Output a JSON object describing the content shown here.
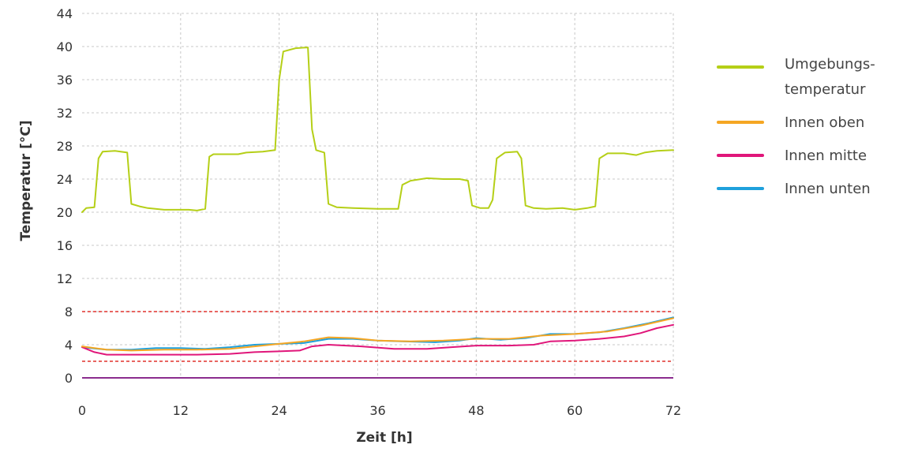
{
  "chart_data": {
    "type": "line",
    "title": "",
    "xlabel": "Zeit [h]",
    "ylabel": "Temperatur [°C]",
    "xlim": [
      0,
      72
    ],
    "ylim": [
      0,
      44
    ],
    "xticks": [
      0,
      12,
      24,
      36,
      48,
      60,
      72
    ],
    "yticks": [
      0,
      4,
      8,
      12,
      16,
      20,
      24,
      28,
      32,
      36,
      40,
      44
    ],
    "grid": "dashed",
    "legend_position": "right",
    "reference_lines": [
      {
        "y": 8,
        "color": "#e0322d",
        "style": "dashed"
      },
      {
        "y": 2,
        "color": "#e0322d",
        "style": "dashed"
      },
      {
        "y": 0,
        "color": "#8b2d8e",
        "style": "solid"
      }
    ],
    "series": [
      {
        "name": "Umgebungs-temperatur",
        "legend_lines": [
          "Umgebungs-",
          "temperatur"
        ],
        "color": "#b5cf17",
        "points": [
          [
            0,
            20
          ],
          [
            0.5,
            20.5
          ],
          [
            1.5,
            20.6
          ],
          [
            2,
            26.5
          ],
          [
            2.5,
            27.3
          ],
          [
            4,
            27.4
          ],
          [
            5.5,
            27.2
          ],
          [
            6,
            21
          ],
          [
            7,
            20.7
          ],
          [
            8,
            20.5
          ],
          [
            10,
            20.3
          ],
          [
            13,
            20.3
          ],
          [
            14,
            20.2
          ],
          [
            15,
            20.4
          ],
          [
            15.5,
            26.7
          ],
          [
            16,
            27
          ],
          [
            19,
            27
          ],
          [
            20,
            27.2
          ],
          [
            22,
            27.3
          ],
          [
            23.5,
            27.5
          ],
          [
            24,
            36
          ],
          [
            24.5,
            39.4
          ],
          [
            26,
            39.8
          ],
          [
            27.5,
            39.9
          ],
          [
            28,
            30
          ],
          [
            28.5,
            27.5
          ],
          [
            29.5,
            27.2
          ],
          [
            30,
            21
          ],
          [
            31,
            20.6
          ],
          [
            33,
            20.5
          ],
          [
            36,
            20.4
          ],
          [
            38.5,
            20.4
          ],
          [
            39,
            23.3
          ],
          [
            40,
            23.8
          ],
          [
            42,
            24.1
          ],
          [
            44,
            24
          ],
          [
            46,
            24
          ],
          [
            47,
            23.8
          ],
          [
            47.5,
            20.8
          ],
          [
            48.5,
            20.5
          ],
          [
            49.5,
            20.5
          ],
          [
            50,
            21.5
          ],
          [
            50.5,
            26.5
          ],
          [
            51.5,
            27.2
          ],
          [
            53,
            27.3
          ],
          [
            53.5,
            26.5
          ],
          [
            54,
            20.8
          ],
          [
            55,
            20.5
          ],
          [
            56.5,
            20.4
          ],
          [
            58.5,
            20.5
          ],
          [
            60,
            20.3
          ],
          [
            61.5,
            20.5
          ],
          [
            62.5,
            20.7
          ],
          [
            63,
            26.5
          ],
          [
            64,
            27.1
          ],
          [
            66,
            27.1
          ],
          [
            67.5,
            26.9
          ],
          [
            68.5,
            27.2
          ],
          [
            70,
            27.4
          ],
          [
            72,
            27.5
          ]
        ]
      },
      {
        "name": "Innen oben",
        "legend_lines": [
          "Innen oben"
        ],
        "color": "#f5a623",
        "points": [
          [
            0,
            3.8
          ],
          [
            3,
            3.4
          ],
          [
            6,
            3.3
          ],
          [
            10,
            3.4
          ],
          [
            14,
            3.4
          ],
          [
            18,
            3.5
          ],
          [
            21,
            3.8
          ],
          [
            24,
            4.1
          ],
          [
            27,
            4.4
          ],
          [
            30,
            4.9
          ],
          [
            33,
            4.8
          ],
          [
            36,
            4.5
          ],
          [
            40,
            4.4
          ],
          [
            44,
            4.5
          ],
          [
            48,
            4.7
          ],
          [
            52,
            4.7
          ],
          [
            56,
            5.1
          ],
          [
            60,
            5.3
          ],
          [
            64,
            5.6
          ],
          [
            68,
            6.3
          ],
          [
            72,
            7.2
          ]
        ]
      },
      {
        "name": "Innen mitte",
        "legend_lines": [
          "Innen mitte"
        ],
        "color": "#e0167a",
        "points": [
          [
            0,
            3.7
          ],
          [
            1.5,
            3.1
          ],
          [
            3,
            2.8
          ],
          [
            6,
            2.8
          ],
          [
            10,
            2.8
          ],
          [
            14,
            2.8
          ],
          [
            18,
            2.9
          ],
          [
            21,
            3.1
          ],
          [
            24,
            3.2
          ],
          [
            26.5,
            3.3
          ],
          [
            28,
            3.8
          ],
          [
            30,
            4
          ],
          [
            34,
            3.8
          ],
          [
            38,
            3.5
          ],
          [
            42,
            3.5
          ],
          [
            45,
            3.7
          ],
          [
            48,
            3.9
          ],
          [
            52,
            3.9
          ],
          [
            55,
            4
          ],
          [
            57,
            4.4
          ],
          [
            60,
            4.5
          ],
          [
            63,
            4.7
          ],
          [
            66,
            5
          ],
          [
            68,
            5.4
          ],
          [
            70,
            6
          ],
          [
            72,
            6.4
          ]
        ]
      },
      {
        "name": "Innen unten",
        "legend_lines": [
          "Innen unten"
        ],
        "color": "#1ea0dc",
        "points": [
          [
            0,
            3.7
          ],
          [
            3,
            3.4
          ],
          [
            6,
            3.4
          ],
          [
            9,
            3.6
          ],
          [
            12,
            3.6
          ],
          [
            15,
            3.5
          ],
          [
            18,
            3.7
          ],
          [
            21,
            4
          ],
          [
            24,
            4.1
          ],
          [
            27,
            4.2
          ],
          [
            30,
            4.7
          ],
          [
            33,
            4.7
          ],
          [
            36,
            4.5
          ],
          [
            39,
            4.4
          ],
          [
            43,
            4.3
          ],
          [
            46,
            4.5
          ],
          [
            48,
            4.8
          ],
          [
            51,
            4.6
          ],
          [
            54,
            4.8
          ],
          [
            57,
            5.3
          ],
          [
            60,
            5.3
          ],
          [
            63,
            5.5
          ],
          [
            66,
            6
          ],
          [
            69,
            6.6
          ],
          [
            72,
            7.3
          ]
        ]
      }
    ]
  }
}
